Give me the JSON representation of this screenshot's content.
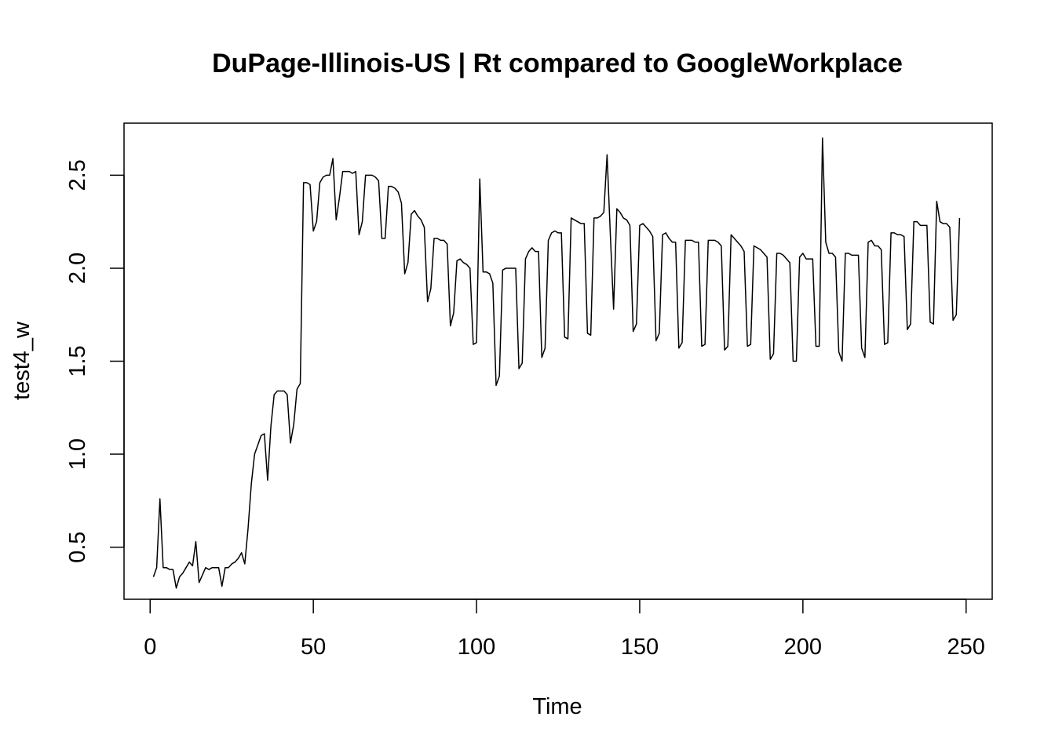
{
  "chart_data": {
    "type": "line",
    "title": "DuPage-Illinois-US | Rt compared to GoogleWorkplace",
    "xlabel": "Time",
    "ylabel": "test4_w",
    "xlim": [
      -8,
      258
    ],
    "ylim": [
      0.22,
      2.78
    ],
    "xticks": [
      0,
      50,
      100,
      150,
      200,
      250
    ],
    "yticks": [
      0.5,
      1.0,
      1.5,
      2.0,
      2.5
    ],
    "xtick_labels": [
      "0",
      "50",
      "100",
      "150",
      "200",
      "250"
    ],
    "ytick_labels": [
      "0.5",
      "1.0",
      "1.5",
      "2.0",
      "2.5"
    ],
    "grid": false,
    "x_start": 1,
    "series": [
      {
        "values": [
          0.34,
          0.39,
          0.76,
          0.39,
          0.39,
          0.38,
          0.38,
          0.28,
          0.34,
          0.36,
          0.39,
          0.42,
          0.4,
          0.53,
          0.31,
          0.35,
          0.39,
          0.38,
          0.39,
          0.39,
          0.39,
          0.29,
          0.39,
          0.39,
          0.41,
          0.42,
          0.44,
          0.47,
          0.41,
          0.6,
          0.84,
          1.0,
          1.05,
          1.1,
          1.11,
          0.86,
          1.15,
          1.32,
          1.34,
          1.34,
          1.34,
          1.32,
          1.06,
          1.16,
          1.35,
          1.38,
          2.46,
          2.46,
          2.45,
          2.2,
          2.25,
          2.46,
          2.49,
          2.5,
          2.5,
          2.59,
          2.26,
          2.38,
          2.52,
          2.52,
          2.52,
          2.51,
          2.52,
          2.18,
          2.25,
          2.5,
          2.5,
          2.5,
          2.49,
          2.47,
          2.16,
          2.16,
          2.44,
          2.44,
          2.43,
          2.41,
          2.35,
          1.97,
          2.03,
          2.29,
          2.31,
          2.28,
          2.26,
          2.22,
          1.82,
          1.89,
          2.16,
          2.16,
          2.15,
          2.15,
          2.13,
          1.69,
          1.76,
          2.04,
          2.05,
          2.03,
          2.02,
          2.0,
          1.59,
          1.6,
          2.48,
          1.98,
          1.98,
          1.97,
          1.92,
          1.37,
          1.42,
          1.99,
          2.0,
          2.0,
          2.0,
          2.0,
          1.46,
          1.49,
          2.05,
          2.09,
          2.11,
          2.09,
          2.09,
          1.52,
          1.57,
          2.15,
          2.19,
          2.2,
          2.19,
          2.19,
          1.63,
          1.62,
          2.27,
          2.26,
          2.25,
          2.24,
          2.24,
          1.65,
          1.64,
          2.27,
          2.27,
          2.28,
          2.3,
          2.61,
          2.18,
          1.78,
          2.32,
          2.3,
          2.27,
          2.26,
          2.23,
          1.66,
          1.7,
          2.23,
          2.24,
          2.22,
          2.2,
          2.17,
          1.61,
          1.65,
          2.18,
          2.19,
          2.16,
          2.14,
          2.14,
          1.57,
          1.6,
          2.15,
          2.15,
          2.15,
          2.14,
          2.14,
          1.58,
          1.59,
          2.15,
          2.15,
          2.15,
          2.14,
          2.12,
          1.56,
          1.58,
          2.18,
          2.16,
          2.14,
          2.12,
          2.09,
          1.58,
          1.59,
          2.12,
          2.11,
          2.1,
          2.08,
          2.06,
          1.51,
          1.54,
          2.08,
          2.08,
          2.07,
          2.05,
          2.03,
          1.5,
          1.5,
          2.06,
          2.08,
          2.05,
          2.05,
          2.05,
          1.58,
          1.58,
          2.7,
          2.14,
          2.08,
          2.08,
          2.06,
          1.55,
          1.5,
          2.08,
          2.08,
          2.07,
          2.07,
          2.07,
          1.57,
          1.52,
          2.14,
          2.15,
          2.12,
          2.12,
          2.1,
          1.59,
          1.6,
          2.19,
          2.19,
          2.18,
          2.18,
          2.17,
          1.67,
          1.7,
          2.25,
          2.25,
          2.23,
          2.23,
          2.23,
          1.71,
          1.7,
          2.36,
          2.25,
          2.24,
          2.24,
          2.22,
          1.72,
          1.75,
          2.27
        ]
      }
    ]
  }
}
